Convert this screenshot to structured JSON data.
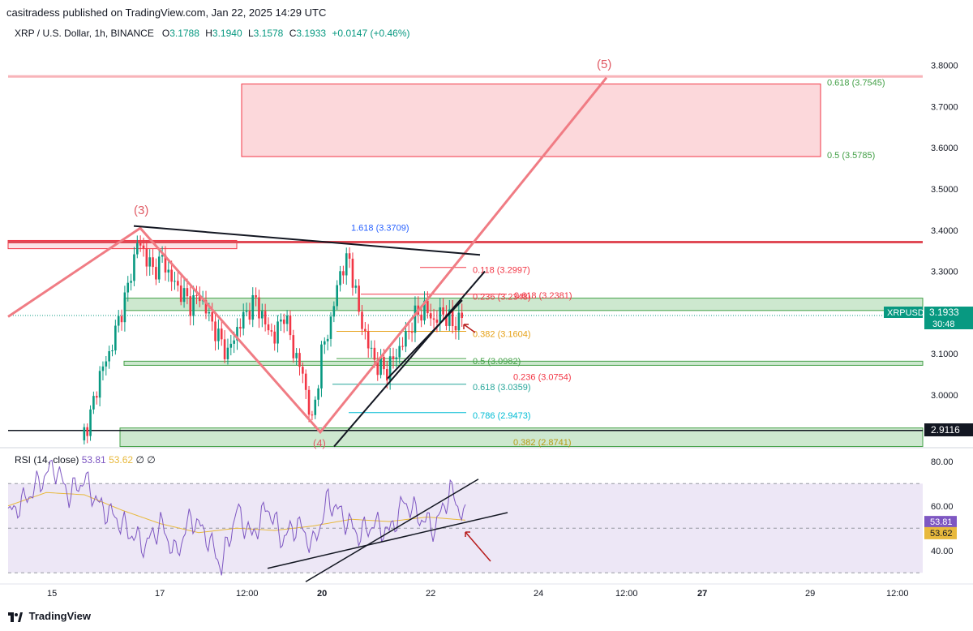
{
  "header": {
    "published": "casitradess published on TradingView.com, Jan 22, 2025 14:29 UTC"
  },
  "symbol": {
    "title": "XRP / U.S. Dollar, 1h, BINANCE",
    "o_label": "O",
    "o": "3.1788",
    "h_label": "H",
    "h": "3.1940",
    "l_label": "L",
    "l": "3.1578",
    "c_label": "C",
    "c": "3.1933",
    "change": "+0.0147 (+0.46%)"
  },
  "rsi_legend": {
    "name": "RSI (14, close)",
    "rsi": "53.81",
    "ma": "53.62",
    "extra": "∅  ∅"
  },
  "footer": {
    "brand": "TradingView"
  },
  "colors": {
    "up": "#089981",
    "down": "#f23645",
    "pink": "#f08080",
    "zone_red": "#f7a1a8",
    "zone_green": "#a5d6a7",
    "rsi": "#7e57c2",
    "rsi_ma": "#e8b93c",
    "bg_rsi": "#ede7f6"
  },
  "chart_data": [
    {
      "type": "candlestick",
      "title": "XRP / U.S. Dollar, 1h, BINANCE",
      "ylim": [
        2.88,
        3.86
      ],
      "y_ticks": [
        "3.8000",
        "3.7000",
        "3.6000",
        "3.5000",
        "3.4000",
        "3.3000",
        "3.1000",
        "3.0000"
      ],
      "x_ticks": [
        "15",
        "17",
        "12:00",
        "20",
        "22",
        "24",
        "12:00",
        "27",
        "29",
        "12:00"
      ],
      "last_price": {
        "label": "XRPUSD",
        "value": "3.1933",
        "countdown": "30:48"
      },
      "marker_price": "2.9116",
      "wave_labels": [
        "(3)",
        "(5)",
        "(4)"
      ],
      "close_path": [
        [
          0,
          2.89
        ],
        [
          3,
          2.95
        ],
        [
          6,
          3.05
        ],
        [
          9,
          3.1
        ],
        [
          12,
          3.18
        ],
        [
          15,
          3.26
        ],
        [
          18,
          3.37
        ],
        [
          20,
          3.35
        ],
        [
          23,
          3.3
        ],
        [
          26,
          3.33
        ],
        [
          29,
          3.28
        ],
        [
          32,
          3.25
        ],
        [
          35,
          3.22
        ],
        [
          38,
          3.24
        ],
        [
          41,
          3.19
        ],
        [
          44,
          3.14
        ],
        [
          47,
          3.1
        ],
        [
          50,
          3.16
        ],
        [
          53,
          3.2
        ],
        [
          56,
          3.23
        ],
        [
          59,
          3.17
        ],
        [
          62,
          3.14
        ],
        [
          65,
          3.2
        ],
        [
          68,
          3.11
        ],
        [
          71,
          3.05
        ],
        [
          74,
          2.93
        ],
        [
          77,
          3.1
        ],
        [
          80,
          3.18
        ],
        [
          83,
          3.3
        ],
        [
          86,
          3.33
        ],
        [
          89,
          3.2
        ],
        [
          92,
          3.12
        ],
        [
          95,
          3.07
        ],
        [
          98,
          3.06
        ],
        [
          101,
          3.1
        ],
        [
          104,
          3.14
        ],
        [
          107,
          3.19
        ],
        [
          110,
          3.21
        ],
        [
          113,
          3.18
        ],
        [
          116,
          3.2
        ],
        [
          119,
          3.17
        ],
        [
          122,
          3.19
        ]
      ],
      "fib_levels": [
        {
          "label": "0.618 (3.7545)",
          "value": 3.7545
        },
        {
          "label": "0.5 (3.5785)",
          "value": 3.5785
        },
        {
          "label": "1.618 (3.3709)",
          "value": 3.3709
        },
        {
          "label": "0.118 (3.2997)",
          "value": 3.2997
        },
        {
          "label": "0.236 (3.2348)",
          "value": 3.2348
        },
        {
          "label": "0.618 (3.2381)",
          "value": 3.2381
        },
        {
          "label": "0.382 (3.1604)",
          "value": 3.1604
        },
        {
          "label": "0.5 (3.0982)",
          "value": 3.0982
        },
        {
          "label": "0.236 (3.0754)",
          "value": 3.0754
        },
        {
          "label": "0.618 (3.0359)",
          "value": 3.0359
        },
        {
          "label": "0.786 (2.9473)",
          "value": 2.9473
        },
        {
          "label": "0.382 (2.8741)",
          "value": 2.8741
        }
      ],
      "zones": [
        {
          "name": "target-zone",
          "low": 3.5785,
          "high": 3.7545
        },
        {
          "name": "resistance-zone",
          "low": 3.355,
          "high": 3.375
        },
        {
          "name": "support-zone-upper",
          "low": 3.205,
          "high": 3.235
        },
        {
          "name": "support-zone-lower",
          "low": 3.072,
          "high": 3.082
        },
        {
          "name": "support-zone-bottom",
          "low": 2.875,
          "high": 2.92
        }
      ]
    },
    {
      "type": "line",
      "title": "RSI (14, close)",
      "ylim": [
        25,
        85
      ],
      "y_ticks": [
        "80.00",
        "60.00",
        "40.00"
      ],
      "current_rsi": "53.81",
      "current_ma": "53.62",
      "rsi_path": [
        [
          0,
          56
        ],
        [
          4,
          62
        ],
        [
          8,
          70
        ],
        [
          12,
          78
        ],
        [
          16,
          65
        ],
        [
          20,
          72
        ],
        [
          24,
          60
        ],
        [
          28,
          55
        ],
        [
          32,
          48
        ],
        [
          36,
          42
        ],
        [
          40,
          52
        ],
        [
          44,
          38
        ],
        [
          48,
          55
        ],
        [
          52,
          47
        ],
        [
          56,
          33
        ],
        [
          60,
          58
        ],
        [
          64,
          46
        ],
        [
          68,
          60
        ],
        [
          72,
          45
        ],
        [
          76,
          52
        ],
        [
          80,
          42
        ],
        [
          84,
          63
        ],
        [
          88,
          55
        ],
        [
          92,
          47
        ],
        [
          96,
          52
        ],
        [
          100,
          48
        ],
        [
          104,
          62
        ],
        [
          108,
          55
        ],
        [
          112,
          50
        ],
        [
          116,
          67
        ],
        [
          120,
          53.8
        ]
      ],
      "ma_path": [
        [
          0,
          60
        ],
        [
          10,
          66
        ],
        [
          20,
          65
        ],
        [
          30,
          58
        ],
        [
          40,
          52
        ],
        [
          50,
          48
        ],
        [
          60,
          50
        ],
        [
          70,
          49
        ],
        [
          80,
          51
        ],
        [
          90,
          54
        ],
        [
          100,
          53
        ],
        [
          110,
          55
        ],
        [
          120,
          53.6
        ]
      ]
    }
  ]
}
